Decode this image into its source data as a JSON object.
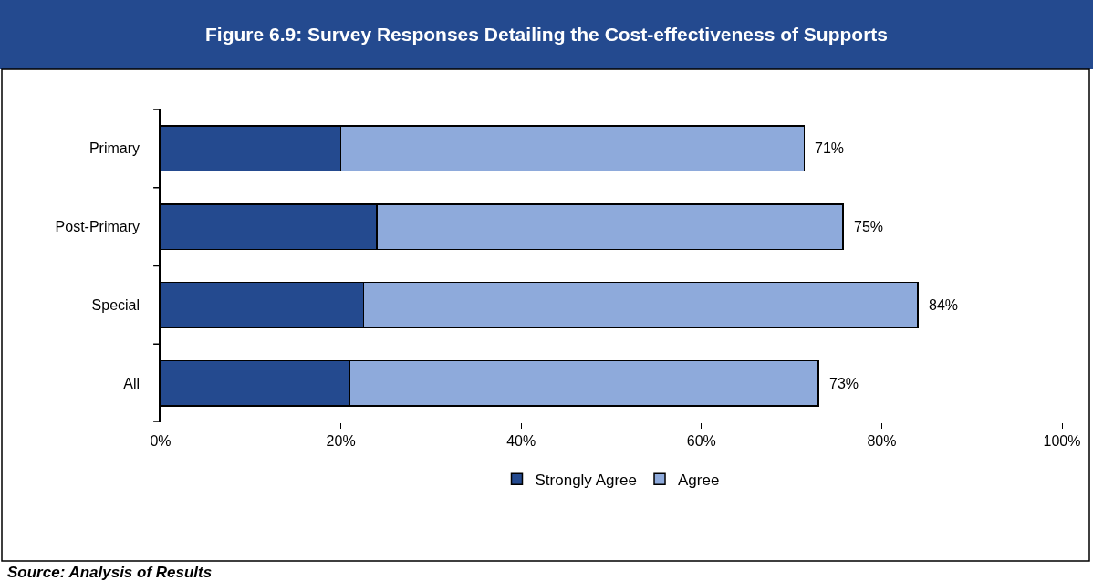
{
  "chart_data": {
    "type": "bar",
    "orientation": "horizontal",
    "stacked": true,
    "title": "Figure 6.9: Survey Responses Detailing the Cost-effectiveness of Supports",
    "categories": [
      "Primary",
      "Post-Primary",
      "Special",
      "All"
    ],
    "series": [
      {
        "name": "Strongly Agree",
        "color": "#244a8f",
        "values": [
          20,
          24,
          22.5,
          21
        ]
      },
      {
        "name": "Agree",
        "color": "#8eaadb",
        "values": [
          51.4,
          51.7,
          61.5,
          52
        ]
      }
    ],
    "totals": [
      "71%",
      "75%",
      "84%",
      "73%"
    ],
    "xlim": [
      0,
      100
    ],
    "xticks": [
      {
        "value": 0,
        "label": "0%"
      },
      {
        "value": 20,
        "label": "20%"
      },
      {
        "value": 40,
        "label": "40%"
      },
      {
        "value": 60,
        "label": "60%"
      },
      {
        "value": 80,
        "label": "80%"
      },
      {
        "value": 100,
        "label": "100%"
      }
    ],
    "legend": "bottom",
    "annotations": [
      "Source: Analysis of Results"
    ]
  }
}
